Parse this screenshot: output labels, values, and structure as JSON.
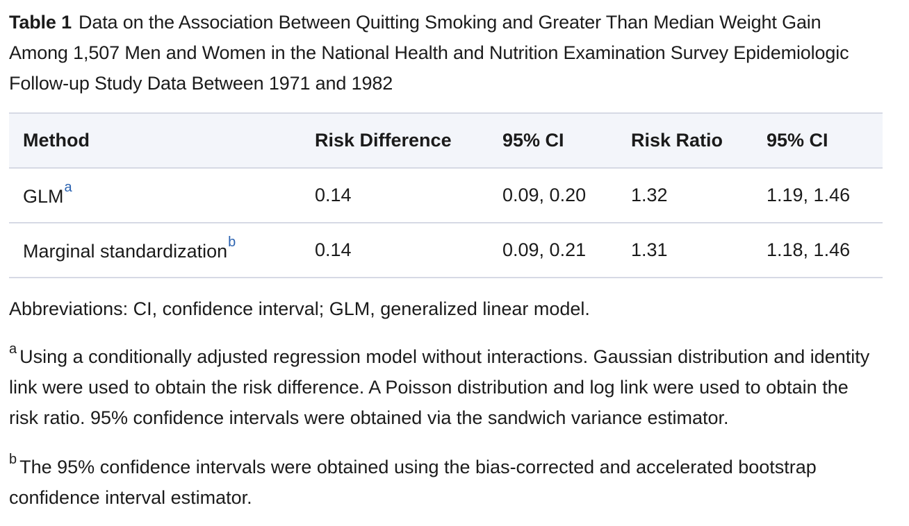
{
  "caption": {
    "label": "Table 1",
    "text": "Data on the Association Between Quitting Smoking and Greater Than Median Weight Gain Among 1,507 Men and Women in the National Health and Nutrition Examination Survey Epidemiologic Follow-up Study Data Between 1971 and 1982"
  },
  "table": {
    "headers": [
      "Method",
      "Risk Difference",
      "95% CI",
      "Risk Ratio",
      "95% CI"
    ],
    "rows": [
      {
        "method": "GLM",
        "method_ref": "a",
        "risk_difference": "0.14",
        "rd_ci": "0.09, 0.20",
        "risk_ratio": "1.32",
        "rr_ci": "1.19, 1.46"
      },
      {
        "method": "Marginal standardization",
        "method_ref": "b",
        "risk_difference": "0.14",
        "rd_ci": "0.09, 0.21",
        "risk_ratio": "1.31",
        "rr_ci": "1.18, 1.46"
      }
    ]
  },
  "abbreviations": "Abbreviations: CI, confidence interval; GLM, generalized linear model.",
  "footnotes": [
    {
      "mark": "a",
      "text": "Using a conditionally adjusted regression model without interactions. Gaussian distribution and identity link were used to obtain the risk difference. A Poisson distribution and log link were used to obtain the risk ratio. 95% confidence intervals were obtained via the sandwich variance estimator."
    },
    {
      "mark": "b",
      "text": "The 95% confidence intervals were obtained using the bias-corrected and accelerated bootstrap confidence interval estimator."
    }
  ],
  "colors": {
    "text": "#1b1b1b",
    "link": "#2a62b0",
    "header_bg": "#f3f5fa",
    "rule": "#d6d9e4"
  }
}
